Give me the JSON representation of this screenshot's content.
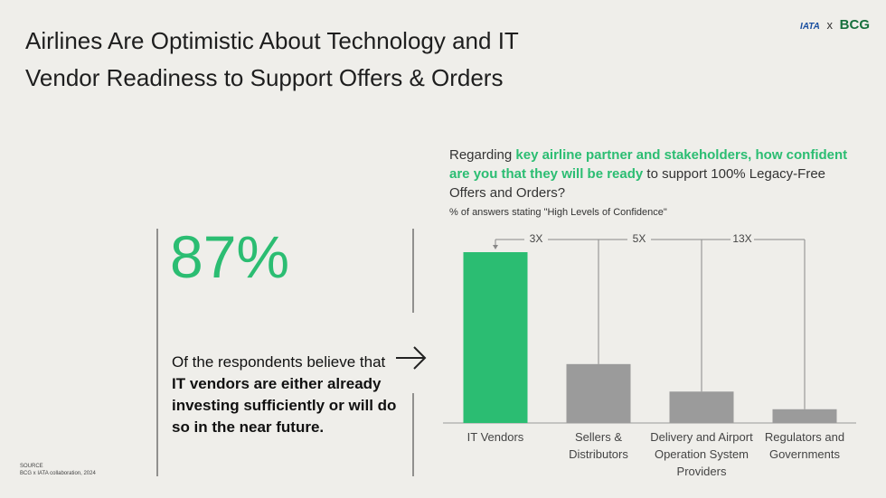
{
  "header": {
    "title_lines": [
      "Airlines Are Optimistic About Technology and IT",
      "Vendor Readiness to Support Offers & Orders"
    ],
    "logo_left": "IATA",
    "logo_sep": "x",
    "logo_right": "BCG"
  },
  "callout": {
    "stat": "87%",
    "text_parts": [
      "Of the respondents believe that ",
      "IT vendors are either already investing sufficiently or will do so in the near future."
    ]
  },
  "chart_data": {
    "type": "bar",
    "title_parts": [
      "Regarding ",
      "key airline partner and stakeholders, how confident are you that they will be ready",
      " to support 100% Legacy-Free Offers and Orders?"
    ],
    "subtitle": "% of answers stating \"High Levels of Confidence\"",
    "categories": [
      "IT Vendors",
      "Sellers & Distributors",
      "Delivery and Airport Operation System Providers",
      "Regulators and Governments"
    ],
    "values": [
      87,
      30,
      16,
      7
    ],
    "colors": [
      "#2bbd72",
      "#9b9b9b",
      "#9b9b9b",
      "#9b9b9b"
    ],
    "annotations": [
      "3X",
      "5X",
      "13X"
    ]
  },
  "source": {
    "label": "SOURCE",
    "text": "BCG x IATA collaboration, 2024"
  }
}
